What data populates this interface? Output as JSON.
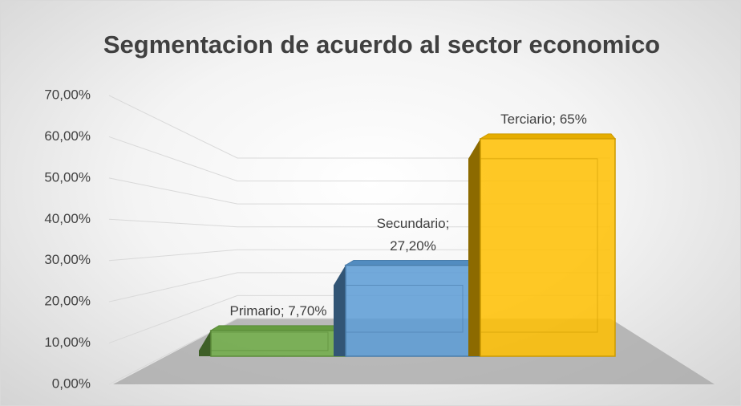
{
  "chart_data": {
    "type": "bar3d",
    "title": "Segmentacion de acuerdo al sector economico",
    "categories": [
      "Primario",
      "Secundario",
      "Terciario"
    ],
    "values": [
      7.7,
      27.2,
      65
    ],
    "value_labels": [
      "Primario; 7,70%",
      "Secundario; 27,20%",
      "Terciario; 65%"
    ],
    "colors": [
      "#70ad47",
      "#5b9bd5",
      "#ffc000"
    ],
    "ylim": [
      0,
      70
    ],
    "yticks": [
      {
        "value": 0,
        "label": "0,00%"
      },
      {
        "value": 10,
        "label": "10,00%"
      },
      {
        "value": 20,
        "label": "20,00%"
      },
      {
        "value": 30,
        "label": "30,00%"
      },
      {
        "value": 40,
        "label": "40,00%"
      },
      {
        "value": 50,
        "label": "50,00%"
      },
      {
        "value": 60,
        "label": "60,00%"
      },
      {
        "value": 70,
        "label": "70,00%"
      }
    ],
    "grid": true
  }
}
